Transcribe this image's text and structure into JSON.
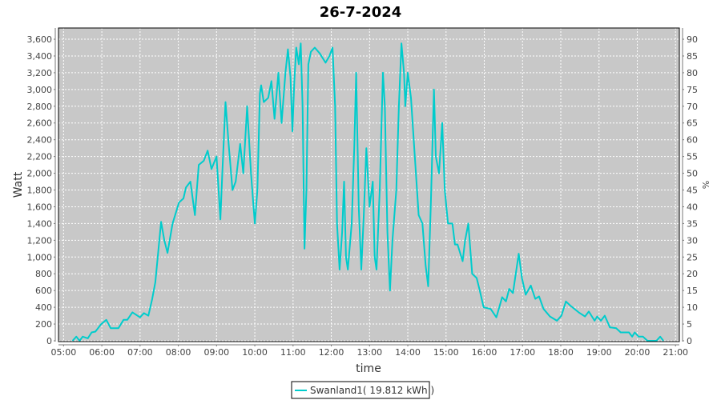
{
  "chart_data": {
    "type": "line",
    "title": "26-7-2024",
    "xlabel": "time",
    "ylabel": "Watt",
    "y2label": "%",
    "xlim": [
      "04:52",
      "21:06"
    ],
    "ylim": [
      0,
      3734
    ],
    "y2lim": [
      0,
      93.35
    ],
    "grid": true,
    "legend_placement": "bottom",
    "line_color": "#00CCCC",
    "plot_background": "#C8C8C8",
    "x_ticks": [
      "05:00",
      "06:00",
      "07:00",
      "08:00",
      "09:00",
      "10:00",
      "11:00",
      "12:00",
      "13:00",
      "14:00",
      "15:00",
      "16:00",
      "17:00",
      "18:00",
      "19:00",
      "20:00",
      "21:00"
    ],
    "y_ticks": [
      0,
      200,
      400,
      600,
      800,
      1000,
      1200,
      1400,
      1600,
      1800,
      2000,
      2200,
      2400,
      2600,
      2800,
      3000,
      3200,
      3400,
      3600
    ],
    "y_tick_labels": [
      "0",
      "200",
      "400",
      "600",
      "800",
      "1,000",
      "1,200",
      "1,400",
      "1,600",
      "1,800",
      "2,000",
      "2,200",
      "2,400",
      "2,600",
      "2,800",
      "3,000",
      "3,200",
      "3,400",
      "3,600"
    ],
    "y2_ticks": [
      "0",
      "5",
      "10",
      "15",
      "20",
      "25",
      "30",
      "35",
      "40",
      "45",
      "50",
      "55",
      "60",
      "65",
      "70",
      "75",
      "80",
      "85",
      "90"
    ],
    "series": [
      {
        "name": "Swanland1( 19.812 kWh )",
        "x": [
          "05:14",
          "05:20",
          "05:25",
          "05:30",
          "05:38",
          "05:44",
          "05:50",
          "05:59",
          "06:07",
          "06:14",
          "06:26",
          "06:34",
          "06:40",
          "06:48",
          "07:00",
          "07:06",
          "07:13",
          "07:19",
          "07:24",
          "07:29",
          "07:33",
          "07:38",
          "07:43",
          "07:51",
          "08:01",
          "08:08",
          "08:12",
          "08:19",
          "08:26",
          "08:32",
          "08:40",
          "08:46",
          "08:52",
          "09:00",
          "09:06",
          "09:09",
          "09:14",
          "09:19",
          "09:25",
          "09:30",
          "09:37",
          "09:42",
          "09:48",
          "09:54",
          "10:00",
          "10:04",
          "10:08",
          "10:10",
          "10:14",
          "10:21",
          "10:26",
          "10:31",
          "10:37",
          "10:42",
          "10:48",
          "10:52",
          "10:56",
          "10:59",
          "11:02",
          "11:05",
          "11:09",
          "11:12",
          "11:15",
          "11:18",
          "11:21",
          "11:24",
          "11:28",
          "11:34",
          "11:42",
          "11:51",
          "11:57",
          "12:02",
          "12:06",
          "12:09",
          "12:13",
          "12:17",
          "12:20",
          "12:23",
          "12:26",
          "12:32",
          "12:36",
          "12:39",
          "12:43",
          "12:47",
          "12:51",
          "12:55",
          "13:00",
          "13:05",
          "13:08",
          "13:11",
          "13:16",
          "13:21",
          "13:24",
          "13:28",
          "13:32",
          "13:36",
          "13:42",
          "13:46",
          "13:50",
          "13:54",
          "13:56",
          "14:00",
          "14:05",
          "14:11",
          "14:17",
          "14:23",
          "14:28",
          "14:32",
          "14:36",
          "14:41",
          "14:44",
          "14:49",
          "14:54",
          "14:58",
          "15:03",
          "15:10",
          "15:14",
          "15:18",
          "15:26",
          "15:30",
          "15:35",
          "15:41",
          "15:48",
          "15:53",
          "15:59",
          "16:10",
          "16:19",
          "16:28",
          "16:34",
          "16:39",
          "16:45",
          "16:54",
          "16:59",
          "17:05",
          "17:13",
          "17:20",
          "17:26",
          "17:33",
          "17:43",
          "17:54",
          "18:01",
          "18:08",
          "18:15",
          "18:28",
          "18:38",
          "18:44",
          "18:53",
          "18:57",
          "19:03",
          "19:09",
          "19:17",
          "19:27",
          "19:34",
          "19:47",
          "19:52",
          "19:56",
          "20:02",
          "20:09",
          "20:16",
          "20:30",
          "20:36",
          "20:41"
        ],
        "values": [
          0,
          50,
          0,
          50,
          30,
          100,
          110,
          200,
          250,
          150,
          150,
          250,
          250,
          340,
          280,
          330,
          300,
          500,
          700,
          1100,
          1420,
          1200,
          1050,
          1400,
          1650,
          1700,
          1830,
          1900,
          1500,
          2100,
          2150,
          2270,
          2050,
          2200,
          1450,
          2000,
          2850,
          2350,
          1800,
          1900,
          2350,
          2000,
          2800,
          2000,
          1400,
          1800,
          2950,
          3050,
          2850,
          2900,
          3100,
          2650,
          3200,
          2600,
          3200,
          3480,
          3150,
          2500,
          3100,
          3500,
          3300,
          3550,
          2800,
          1100,
          1800,
          3300,
          3450,
          3500,
          3430,
          3320,
          3400,
          3500,
          2800,
          1400,
          850,
          1300,
          1900,
          1000,
          850,
          1400,
          2300,
          3200,
          1600,
          850,
          1500,
          2300,
          1600,
          1900,
          1000,
          850,
          1800,
          3200,
          2800,
          1300,
          600,
          1200,
          1800,
          2800,
          3550,
          3200,
          2800,
          3200,
          2900,
          2200,
          1500,
          1400,
          900,
          650,
          1600,
          3000,
          2200,
          2000,
          2600,
          1800,
          1400,
          1400,
          1150,
          1150,
          950,
          1200,
          1400,
          800,
          750,
          600,
          400,
          380,
          280,
          520,
          470,
          620,
          570,
          1040,
          750,
          550,
          660,
          500,
          530,
          380,
          290,
          240,
          300,
          470,
          420,
          340,
          290,
          350,
          240,
          290,
          240,
          300,
          160,
          150,
          100,
          100,
          50,
          100,
          50,
          50,
          0,
          0,
          50,
          0
        ]
      }
    ]
  }
}
